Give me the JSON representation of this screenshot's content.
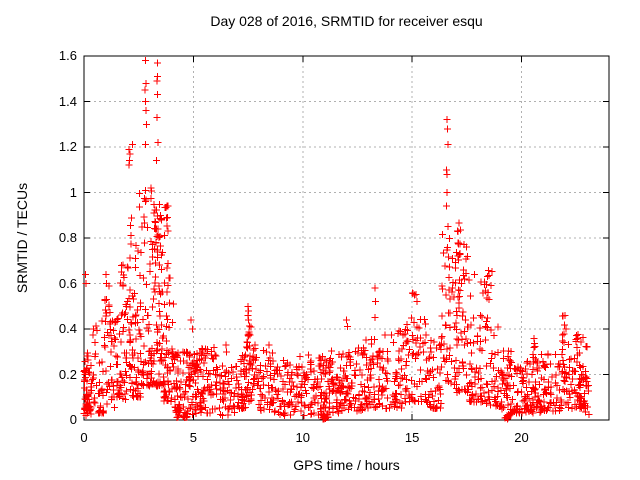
{
  "title": "Day 028 of 2016, SRMTID for receiver esqu",
  "chart_data": {
    "type": "scatter",
    "title": "Day 028 of 2016, SRMTID for receiver esqu",
    "xlabel": "GPS time / hours",
    "ylabel": "SRMTID / TECUs",
    "xlim": [
      0,
      24
    ],
    "ylim": [
      0,
      1.6
    ],
    "xticks": [
      0,
      5,
      10,
      15,
      20
    ],
    "xtick_labels": [
      "0",
      "5",
      "10",
      "15",
      "20"
    ],
    "yticks": [
      0,
      0.2,
      0.4,
      0.6,
      0.8,
      1.0,
      1.2,
      1.4,
      1.6
    ],
    "ytick_labels": [
      "0",
      "0.2",
      "0.4",
      "0.6",
      "0.8",
      "1",
      "1.2",
      "1.4",
      "1.6"
    ],
    "grid": true,
    "legend": "none",
    "marker": "plus",
    "marker_color": "#ff0000",
    "grid_color": "#b0b0b0",
    "axis_color": "#000000",
    "background_color": "#ffffff",
    "seed": 20160128,
    "peak_points": [
      [
        0.06,
        0.64
      ],
      [
        0.1,
        0.6
      ],
      [
        1.0,
        0.64
      ],
      [
        1.03,
        0.6
      ],
      [
        2.06,
        1.19
      ],
      [
        2.1,
        1.17
      ],
      [
        2.07,
        1.14
      ],
      [
        2.05,
        1.12
      ],
      [
        2.21,
        1.21
      ],
      [
        2.8,
        1.58
      ],
      [
        2.83,
        1.48
      ],
      [
        2.79,
        1.45
      ],
      [
        2.81,
        1.4
      ],
      [
        2.84,
        1.36
      ],
      [
        2.86,
        1.3
      ],
      [
        2.82,
        1.21
      ],
      [
        3.35,
        1.57
      ],
      [
        3.37,
        1.51
      ],
      [
        3.33,
        1.49
      ],
      [
        3.36,
        1.43
      ],
      [
        3.34,
        1.33
      ],
      [
        3.38,
        1.22
      ],
      [
        3.31,
        1.14
      ],
      [
        4.9,
        0.44
      ],
      [
        4.95,
        0.4
      ],
      [
        6.5,
        0.33
      ],
      [
        6.52,
        0.3
      ],
      [
        7.5,
        0.5
      ],
      [
        7.52,
        0.48
      ],
      [
        7.49,
        0.46
      ],
      [
        7.53,
        0.44
      ],
      [
        12.0,
        0.44
      ],
      [
        12.05,
        0.41
      ],
      [
        13.3,
        0.58
      ],
      [
        13.32,
        0.52
      ],
      [
        13.31,
        0.45
      ],
      [
        15.1,
        0.55
      ],
      [
        16.6,
        1.32
      ],
      [
        16.61,
        1.28
      ],
      [
        16.63,
        1.21
      ],
      [
        16.58,
        1.1
      ],
      [
        16.59,
        1.08
      ],
      [
        16.6,
        1.0
      ],
      [
        16.57,
        0.94
      ],
      [
        16.65,
        0.85
      ]
    ],
    "density_clusters_format": "[x_start_hours, x_end_hours, n_points, y_min_TECU, y_max_TECU, low_bias_exponent]",
    "density_clusters": [
      [
        0.0,
        0.35,
        55,
        0.02,
        0.3,
        1.3
      ],
      [
        0.35,
        1.0,
        40,
        0.03,
        0.45,
        2.0
      ],
      [
        0.95,
        1.15,
        7,
        0.35,
        0.62,
        1.0
      ],
      [
        1.0,
        1.6,
        50,
        0.05,
        0.5,
        1.6
      ],
      [
        1.6,
        2.1,
        55,
        0.08,
        0.72,
        1.7
      ],
      [
        2.1,
        2.6,
        60,
        0.1,
        1.0,
        2.2
      ],
      [
        2.6,
        3.1,
        60,
        0.15,
        1.05,
        2.0
      ],
      [
        3.1,
        3.6,
        65,
        0.15,
        0.95,
        1.8
      ],
      [
        3.15,
        3.85,
        30,
        0.72,
        0.95,
        1.0
      ],
      [
        3.6,
        4.15,
        60,
        0.08,
        0.7,
        1.8
      ],
      [
        4.15,
        4.75,
        65,
        0.01,
        0.3,
        1.4
      ],
      [
        4.75,
        5.35,
        60,
        0.02,
        0.3,
        1.4
      ],
      [
        5.35,
        6.05,
        50,
        0.03,
        0.32,
        1.6
      ],
      [
        6.05,
        7.05,
        55,
        0.02,
        0.24,
        1.5
      ],
      [
        7.05,
        7.45,
        35,
        0.05,
        0.3,
        1.4
      ],
      [
        7.45,
        7.65,
        8,
        0.3,
        0.42,
        1.0
      ],
      [
        7.4,
        7.9,
        40,
        0.08,
        0.35,
        1.3
      ],
      [
        7.9,
        8.7,
        50,
        0.04,
        0.33,
        1.5
      ],
      [
        8.7,
        9.7,
        60,
        0.02,
        0.27,
        1.4
      ],
      [
        9.7,
        10.7,
        60,
        0.02,
        0.29,
        1.4
      ],
      [
        10.7,
        11.25,
        55,
        0.01,
        0.28,
        1.3
      ],
      [
        10.9,
        11.05,
        8,
        0.005,
        0.02,
        1.0
      ],
      [
        11.25,
        12.0,
        60,
        0.03,
        0.31,
        1.4
      ],
      [
        12.0,
        12.85,
        60,
        0.04,
        0.32,
        1.5
      ],
      [
        12.85,
        13.65,
        55,
        0.05,
        0.36,
        1.5
      ],
      [
        13.65,
        14.65,
        60,
        0.05,
        0.4,
        1.5
      ],
      [
        14.65,
        15.65,
        65,
        0.08,
        0.46,
        1.5
      ],
      [
        15.0,
        15.25,
        4,
        0.47,
        0.56,
        1.0
      ],
      [
        15.65,
        16.35,
        50,
        0.05,
        0.36,
        1.5
      ],
      [
        16.35,
        17.05,
        55,
        0.15,
        0.82,
        1.6
      ],
      [
        17.0,
        17.55,
        50,
        0.12,
        0.78,
        1.7
      ],
      [
        17.05,
        17.3,
        12,
        0.7,
        0.87,
        1.0
      ],
      [
        17.55,
        18.35,
        55,
        0.08,
        0.66,
        1.8
      ],
      [
        18.25,
        18.65,
        12,
        0.52,
        0.67,
        1.0
      ],
      [
        18.35,
        19.05,
        40,
        0.06,
        0.45,
        1.7
      ],
      [
        19.05,
        19.65,
        50,
        0.02,
        0.33,
        1.5
      ],
      [
        19.25,
        19.4,
        8,
        0.005,
        0.02,
        1.0
      ],
      [
        19.65,
        20.45,
        55,
        0.03,
        0.26,
        1.4
      ],
      [
        20.45,
        21.05,
        50,
        0.03,
        0.31,
        1.4
      ],
      [
        20.55,
        20.7,
        4,
        0.3,
        0.37,
        1.0
      ],
      [
        21.05,
        21.75,
        45,
        0.04,
        0.29,
        1.4
      ],
      [
        21.75,
        22.35,
        45,
        0.05,
        0.4,
        1.4
      ],
      [
        21.85,
        22.0,
        4,
        0.4,
        0.47,
        1.0
      ],
      [
        22.35,
        23.0,
        50,
        0.05,
        0.4,
        1.4
      ],
      [
        22.6,
        23.1,
        25,
        0.02,
        0.2,
        1.2
      ]
    ]
  }
}
